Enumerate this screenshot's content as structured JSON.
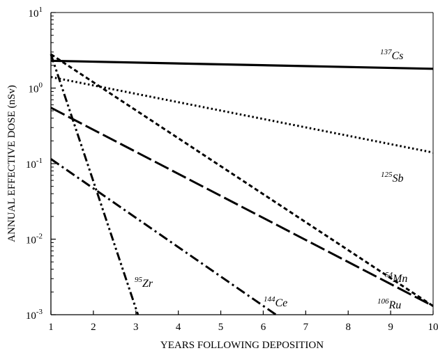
{
  "chart_data": {
    "type": "line",
    "title": "",
    "xlabel": "YEARS FOLLOWING DEPOSITION",
    "ylabel": "ANNUAL EFFECTIVE DOSE (nSv)",
    "x_scale": "linear",
    "y_scale": "log",
    "xlim": [
      1,
      10
    ],
    "ylim": [
      0.001,
      10
    ],
    "x_ticks": [
      "1",
      "2",
      "3",
      "4",
      "5",
      "6",
      "7",
      "8",
      "9",
      "10"
    ],
    "y_ticks": [
      {
        "base": "10",
        "exp": "1",
        "value": 10
      },
      {
        "base": "10",
        "exp": "0",
        "value": 1
      },
      {
        "base": "10",
        "exp": "-1",
        "value": 0.1
      },
      {
        "base": "10",
        "exp": "-2",
        "value": 0.01
      },
      {
        "base": "10",
        "exp": "-3",
        "value": 0.001
      }
    ],
    "grid": false,
    "legend": "none",
    "series": [
      {
        "name": "Cs",
        "mass": "137",
        "dash": "solid",
        "points": [
          [
            1,
            2.3
          ],
          [
            10,
            1.8
          ]
        ]
      },
      {
        "name": "Sb",
        "mass": "125",
        "dash": "dot",
        "points": [
          [
            1,
            1.4
          ],
          [
            10,
            0.14
          ]
        ]
      },
      {
        "name": "Mn",
        "mass": "54",
        "dash": "short-dash",
        "points": [
          [
            1,
            2.8
          ],
          [
            10,
            0.0013
          ]
        ]
      },
      {
        "name": "Ru",
        "mass": "106",
        "dash": "long-dash",
        "points": [
          [
            1,
            0.55
          ],
          [
            10,
            0.0013
          ]
        ]
      },
      {
        "name": "Ce",
        "mass": "144",
        "dash": "dash-dot",
        "points": [
          [
            1,
            0.115
          ],
          [
            6.3,
            0.001
          ]
        ]
      },
      {
        "name": "Zr",
        "mass": "95",
        "dash": "dash-dot-dot",
        "points": [
          [
            1,
            2.8
          ],
          [
            3.05,
            0.001
          ]
        ]
      }
    ]
  }
}
